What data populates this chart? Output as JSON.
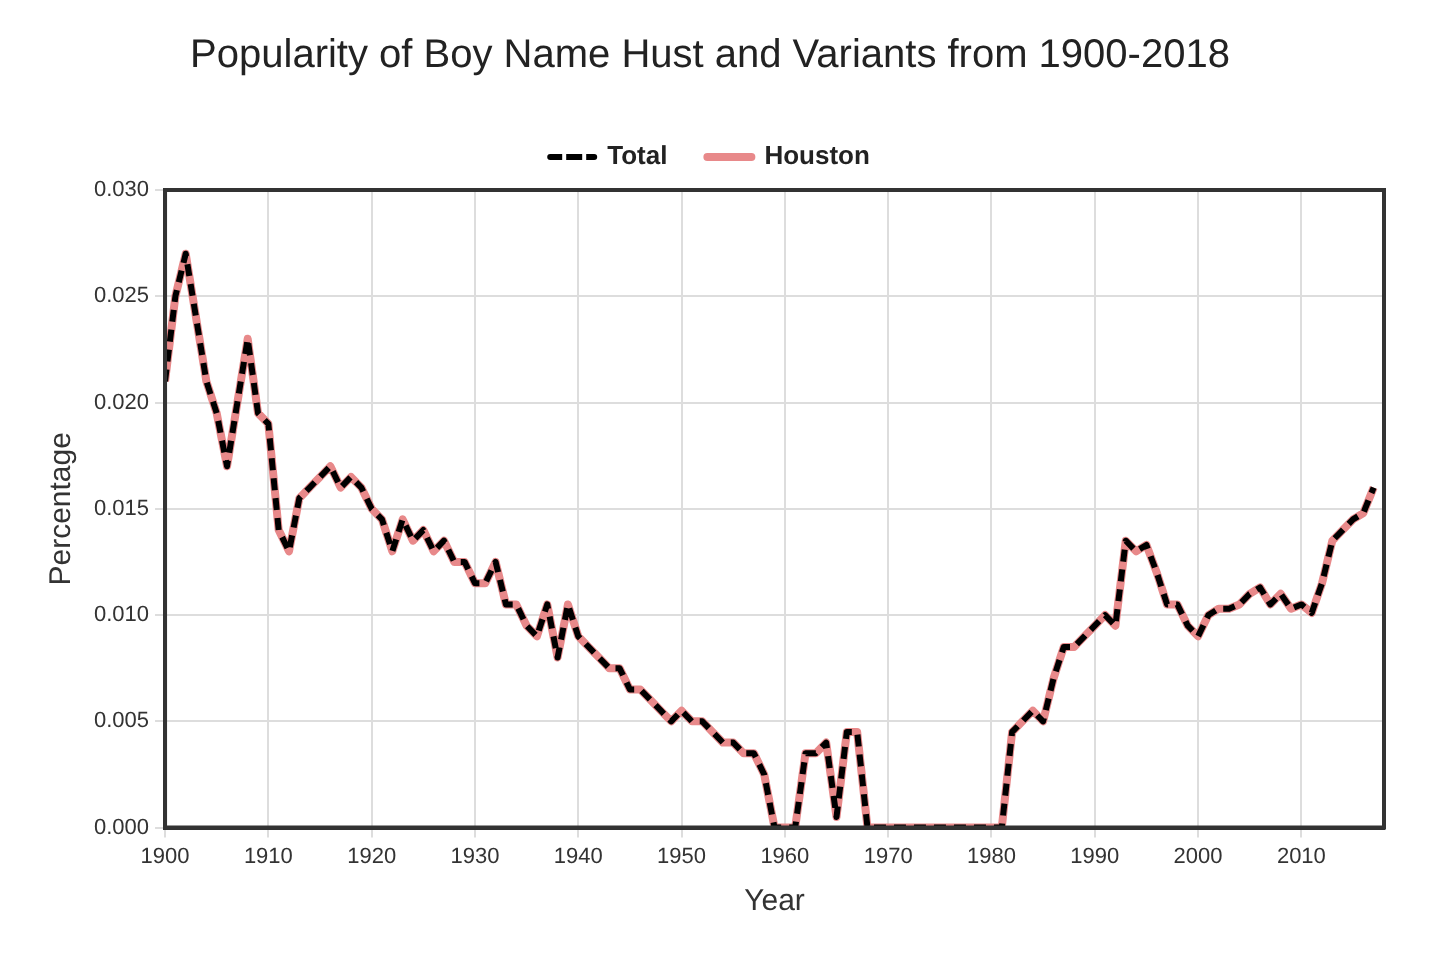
{
  "chart_data": {
    "type": "line",
    "title": "Popularity of Boy Name Hust and Variants from 1900-2018",
    "xlabel": "Year",
    "ylabel": "Percentage",
    "x": [
      1900,
      1901,
      1902,
      1903,
      1904,
      1905,
      1906,
      1907,
      1908,
      1909,
      1910,
      1911,
      1912,
      1913,
      1914,
      1915,
      1916,
      1917,
      1918,
      1919,
      1920,
      1921,
      1922,
      1923,
      1924,
      1925,
      1926,
      1927,
      1928,
      1929,
      1930,
      1931,
      1932,
      1933,
      1934,
      1935,
      1936,
      1937,
      1938,
      1939,
      1940,
      1941,
      1942,
      1943,
      1944,
      1945,
      1946,
      1947,
      1948,
      1949,
      1950,
      1951,
      1952,
      1953,
      1954,
      1955,
      1956,
      1957,
      1958,
      1959,
      1960,
      1961,
      1962,
      1963,
      1964,
      1965,
      1966,
      1967,
      1968,
      1969,
      1970,
      1971,
      1972,
      1973,
      1974,
      1975,
      1976,
      1977,
      1978,
      1979,
      1980,
      1981,
      1982,
      1983,
      1984,
      1985,
      1986,
      1987,
      1988,
      1989,
      1990,
      1991,
      1992,
      1993,
      1994,
      1995,
      1996,
      1997,
      1998,
      1999,
      2000,
      2001,
      2002,
      2003,
      2004,
      2005,
      2006,
      2007,
      2008,
      2009,
      2010,
      2011,
      2012,
      2013,
      2014,
      2015,
      2016,
      2017
    ],
    "series": [
      {
        "name": "Total",
        "color": "#000000",
        "line_style": "dashed",
        "values": [
          0.021,
          0.025,
          0.027,
          0.024,
          0.021,
          0.0195,
          0.017,
          0.02,
          0.023,
          0.0195,
          0.019,
          0.014,
          0.013,
          0.0155,
          0.016,
          0.0165,
          0.017,
          0.016,
          0.0165,
          0.016,
          0.015,
          0.0145,
          0.013,
          0.0145,
          0.0135,
          0.014,
          0.013,
          0.0135,
          0.0125,
          0.0125,
          0.0115,
          0.0115,
          0.0125,
          0.0105,
          0.0105,
          0.0095,
          0.009,
          0.0105,
          0.008,
          0.0105,
          0.009,
          0.0085,
          0.008,
          0.0075,
          0.0075,
          0.0065,
          0.0065,
          0.006,
          0.0055,
          0.005,
          0.0055,
          0.005,
          0.005,
          0.0045,
          0.004,
          0.004,
          0.0035,
          0.0035,
          0.0025,
          0,
          0,
          0,
          0.0035,
          0.0035,
          0.004,
          0.0005,
          0.0045,
          0.0045,
          0,
          0,
          0,
          0,
          0,
          0,
          0,
          0,
          0,
          0,
          0,
          0,
          0,
          0,
          0.0045,
          0.005,
          0.0055,
          0.005,
          0.007,
          0.0085,
          0.0085,
          0.009,
          0.0095,
          0.01,
          0.0095,
          0.0135,
          0.013,
          0.0133,
          0.012,
          0.0105,
          0.0105,
          0.0095,
          0.009,
          0.01,
          0.0103,
          0.0103,
          0.0105,
          0.011,
          0.0113,
          0.0105,
          0.011,
          0.0103,
          0.0105,
          0.0101,
          0.0115,
          0.0135,
          0.014,
          0.0145,
          0.0148,
          0.016
        ]
      },
      {
        "name": "Houston",
        "color": "#e8898a",
        "line_style": "solid",
        "values": [
          0.021,
          0.025,
          0.027,
          0.024,
          0.021,
          0.0195,
          0.017,
          0.02,
          0.023,
          0.0195,
          0.019,
          0.014,
          0.013,
          0.0155,
          0.016,
          0.0165,
          0.017,
          0.016,
          0.0165,
          0.016,
          0.015,
          0.0145,
          0.013,
          0.0145,
          0.0135,
          0.014,
          0.013,
          0.0135,
          0.0125,
          0.0125,
          0.0115,
          0.0115,
          0.0125,
          0.0105,
          0.0105,
          0.0095,
          0.009,
          0.0105,
          0.008,
          0.0105,
          0.009,
          0.0085,
          0.008,
          0.0075,
          0.0075,
          0.0065,
          0.0065,
          0.006,
          0.0055,
          0.005,
          0.0055,
          0.005,
          0.005,
          0.0045,
          0.004,
          0.004,
          0.0035,
          0.0035,
          0.0025,
          0,
          0,
          0,
          0.0035,
          0.0035,
          0.004,
          0.0005,
          0.0045,
          0.0045,
          0,
          0,
          0,
          0,
          0,
          0,
          0,
          0,
          0,
          0,
          0,
          0,
          0,
          0,
          0.0045,
          0.005,
          0.0055,
          0.005,
          0.007,
          0.0085,
          0.0085,
          0.009,
          0.0095,
          0.01,
          0.0095,
          0.0135,
          0.013,
          0.0133,
          0.012,
          0.0105,
          0.0105,
          0.0095,
          0.009,
          0.01,
          0.0103,
          0.0103,
          0.0105,
          0.011,
          0.0113,
          0.0105,
          0.011,
          0.0103,
          0.0105,
          0.0101,
          0.0115,
          0.0135,
          0.014,
          0.0145,
          0.0148,
          0.016
        ]
      }
    ],
    "xlim": [
      1900,
      2018
    ],
    "xticks": [
      1900,
      1910,
      1920,
      1930,
      1940,
      1950,
      1960,
      1970,
      1980,
      1990,
      2000,
      2010
    ],
    "ylim": [
      0,
      0.03
    ],
    "yticks": [
      {
        "value": 0,
        "label": "0.000"
      },
      {
        "value": 0.005,
        "label": "0.005"
      },
      {
        "value": 0.01,
        "label": "0.010"
      },
      {
        "value": 0.015,
        "label": "0.015"
      },
      {
        "value": 0.02,
        "label": "0.020"
      },
      {
        "value": 0.025,
        "label": "0.025"
      },
      {
        "value": 0.03,
        "label": "0.030"
      }
    ],
    "grid": true,
    "legend": "top",
    "marker": "none"
  }
}
